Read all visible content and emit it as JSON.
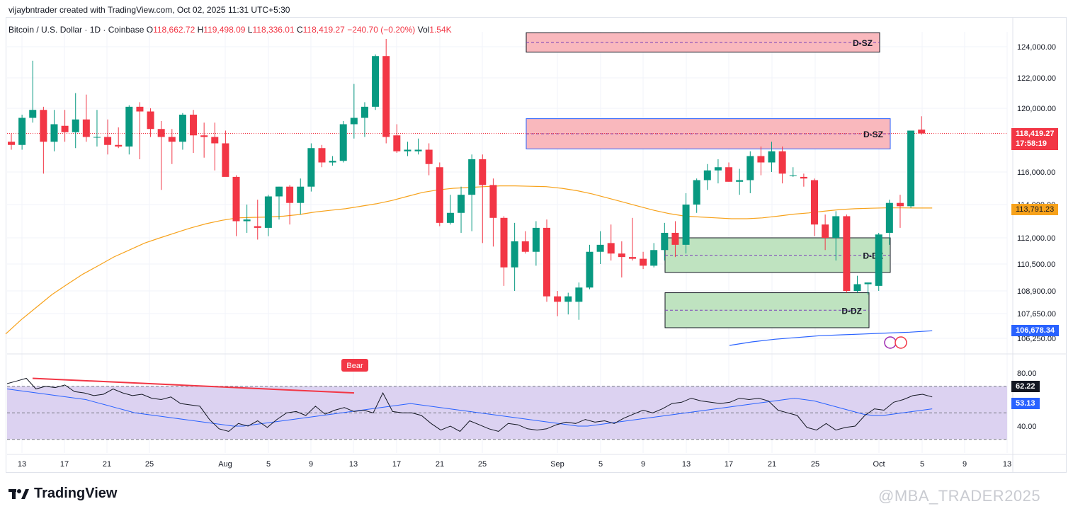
{
  "header": {
    "author_line": "vijaybntrader created with TradingView.com, Oct 02, 2025 11:31 UTC+5:30"
  },
  "symbol": {
    "title": "Bitcoin / U.S. Dollar · 1D · Coinbase",
    "o_label": "O",
    "o_value": "118,662.72",
    "h_label": "H",
    "h_value": "119,498.09",
    "l_label": "L",
    "l_value": "118,336.01",
    "c_label": "C",
    "c_value": "118,419.27",
    "change": "−240.70 (−0.20%)",
    "vol_label": "Vol",
    "vol_value": "1.54K"
  },
  "price_tags": {
    "last_price": "118,419.27",
    "countdown": "17:58:19",
    "ma_value": "113,791.23",
    "ma_long_value": "106,678.34",
    "rsi_value": "62.22",
    "rsi_ma_value": "53.13"
  },
  "colors": {
    "up": "#089981",
    "down": "#f23645",
    "ma": "#f7a21b",
    "ma_long": "#2962ff",
    "supply_zone": "#f9b8bd",
    "demand_zone": "#bfe3c0",
    "rsi_band": "#d8cdef"
  },
  "chart_data": [
    {
      "type": "candlestick",
      "title": "Bitcoin / U.S. Dollar · 1D · Coinbase",
      "y_ticks": [
        {
          "label": "124,000.00",
          "value": 124000
        },
        {
          "label": "122,000.00",
          "value": 122000
        },
        {
          "label": "120,000.00",
          "value": 120000
        },
        {
          "label": "116,000.00",
          "value": 116000
        },
        {
          "label": "114,000.00",
          "value": 114000
        },
        {
          "label": "112,000.00",
          "value": 112000
        },
        {
          "label": "110,500.00",
          "value": 110500
        },
        {
          "label": "108,900.00",
          "value": 108900
        },
        {
          "label": "107,650.00",
          "value": 107650
        },
        {
          "label": "106,250.00",
          "value": 106250
        }
      ],
      "x_ticks": [
        "13",
        "17",
        "21",
        "25",
        "Aug",
        "5",
        "9",
        "13",
        "17",
        "21",
        "25",
        "Sep",
        "5",
        "9",
        "13",
        "17",
        "21",
        "25",
        "Oct",
        "5",
        "9",
        "13"
      ],
      "zones": [
        {
          "label": "D-SZ",
          "kind": "supply",
          "top": 124900,
          "bottom": 123650
        },
        {
          "label": "D-SZ",
          "kind": "supply",
          "top": 119350,
          "bottom": 117450
        },
        {
          "label": "D-DZ",
          "kind": "demand",
          "top": 112000,
          "bottom": 110000
        },
        {
          "label": "D-DZ",
          "kind": "demand",
          "top": 108800,
          "bottom": 106850
        }
      ],
      "candles": [
        {
          "o": 117900,
          "h": 118400,
          "l": 117400,
          "c": 117700
        },
        {
          "o": 117700,
          "h": 119600,
          "l": 117400,
          "c": 119400
        },
        {
          "o": 119400,
          "h": 123100,
          "l": 119100,
          "c": 119900
        },
        {
          "o": 119900,
          "h": 120100,
          "l": 115900,
          "c": 117900
        },
        {
          "o": 117900,
          "h": 119900,
          "l": 117300,
          "c": 119000
        },
        {
          "o": 118900,
          "h": 119900,
          "l": 117900,
          "c": 118500
        },
        {
          "o": 118500,
          "h": 121000,
          "l": 117500,
          "c": 119300
        },
        {
          "o": 119300,
          "h": 120900,
          "l": 117900,
          "c": 118200
        },
        {
          "o": 118200,
          "h": 119900,
          "l": 117600,
          "c": 118200
        },
        {
          "o": 118200,
          "h": 119300,
          "l": 117100,
          "c": 117700
        },
        {
          "o": 117700,
          "h": 118800,
          "l": 117500,
          "c": 117600
        },
        {
          "o": 117600,
          "h": 120200,
          "l": 117100,
          "c": 120100
        },
        {
          "o": 120100,
          "h": 120400,
          "l": 116800,
          "c": 119800
        },
        {
          "o": 119800,
          "h": 120000,
          "l": 118200,
          "c": 118700
        },
        {
          "o": 118700,
          "h": 119200,
          "l": 114900,
          "c": 118200
        },
        {
          "o": 118200,
          "h": 118700,
          "l": 116500,
          "c": 117900
        },
        {
          "o": 117900,
          "h": 119700,
          "l": 117400,
          "c": 119600
        },
        {
          "o": 119600,
          "h": 119900,
          "l": 117200,
          "c": 118300
        },
        {
          "o": 118300,
          "h": 119100,
          "l": 116900,
          "c": 118200
        },
        {
          "o": 118200,
          "h": 119100,
          "l": 116100,
          "c": 117800
        },
        {
          "o": 117800,
          "h": 118600,
          "l": 115800,
          "c": 115700
        },
        {
          "o": 115700,
          "h": 115800,
          "l": 112100,
          "c": 113000
        },
        {
          "o": 113000,
          "h": 114000,
          "l": 112300,
          "c": 113100
        },
        {
          "o": 112700,
          "h": 114300,
          "l": 111900,
          "c": 112600
        },
        {
          "o": 112600,
          "h": 114600,
          "l": 112100,
          "c": 114500
        },
        {
          "o": 114500,
          "h": 115100,
          "l": 113100,
          "c": 115100
        },
        {
          "o": 115100,
          "h": 115200,
          "l": 112800,
          "c": 114100
        },
        {
          "o": 114100,
          "h": 115600,
          "l": 113400,
          "c": 115100
        },
        {
          "o": 115100,
          "h": 117800,
          "l": 114800,
          "c": 117500
        },
        {
          "o": 117500,
          "h": 117700,
          "l": 116300,
          "c": 116600
        },
        {
          "o": 116600,
          "h": 117000,
          "l": 116400,
          "c": 116700
        },
        {
          "o": 116700,
          "h": 119200,
          "l": 116600,
          "c": 119000
        },
        {
          "o": 119000,
          "h": 121600,
          "l": 118100,
          "c": 119400
        },
        {
          "o": 119400,
          "h": 120400,
          "l": 118200,
          "c": 120100
        },
        {
          "o": 120100,
          "h": 123500,
          "l": 119900,
          "c": 123400
        },
        {
          "o": 123400,
          "h": 124500,
          "l": 117800,
          "c": 118200
        },
        {
          "o": 118300,
          "h": 119000,
          "l": 117200,
          "c": 117300
        },
        {
          "o": 117300,
          "h": 117900,
          "l": 117000,
          "c": 117400
        },
        {
          "o": 117300,
          "h": 118100,
          "l": 117100,
          "c": 117400
        },
        {
          "o": 117400,
          "h": 117800,
          "l": 115800,
          "c": 116500
        },
        {
          "o": 116300,
          "h": 116600,
          "l": 112700,
          "c": 112900
        },
        {
          "o": 112900,
          "h": 114600,
          "l": 112800,
          "c": 113500
        },
        {
          "o": 113500,
          "h": 115100,
          "l": 112300,
          "c": 114600
        },
        {
          "o": 114600,
          "h": 117100,
          "l": 112400,
          "c": 116800
        },
        {
          "o": 116800,
          "h": 117100,
          "l": 111700,
          "c": 115200
        },
        {
          "o": 115200,
          "h": 115600,
          "l": 111500,
          "c": 113200
        },
        {
          "o": 113200,
          "h": 113300,
          "l": 109200,
          "c": 110300
        },
        {
          "o": 110300,
          "h": 112900,
          "l": 108900,
          "c": 111800
        },
        {
          "o": 111800,
          "h": 112400,
          "l": 111100,
          "c": 111200
        },
        {
          "o": 111200,
          "h": 113000,
          "l": 110400,
          "c": 112600
        },
        {
          "o": 112600,
          "h": 113100,
          "l": 108300,
          "c": 108600
        },
        {
          "o": 108600,
          "h": 108900,
          "l": 107500,
          "c": 108300
        },
        {
          "o": 108300,
          "h": 108800,
          "l": 107600,
          "c": 108600
        },
        {
          "o": 108300,
          "h": 109400,
          "l": 107300,
          "c": 109100
        },
        {
          "o": 109100,
          "h": 111600,
          "l": 109000,
          "c": 111200
        },
        {
          "o": 111200,
          "h": 112400,
          "l": 110500,
          "c": 111600
        },
        {
          "o": 111700,
          "h": 112800,
          "l": 110700,
          "c": 111100
        },
        {
          "o": 111100,
          "h": 111800,
          "l": 109700,
          "c": 110900
        },
        {
          "o": 110900,
          "h": 113200,
          "l": 110700,
          "c": 110800
        },
        {
          "o": 110800,
          "h": 111200,
          "l": 110200,
          "c": 110400
        },
        {
          "o": 110400,
          "h": 111700,
          "l": 110300,
          "c": 111300
        },
        {
          "o": 111300,
          "h": 112900,
          "l": 110700,
          "c": 112300
        },
        {
          "o": 112300,
          "h": 113000,
          "l": 110900,
          "c": 111600
        },
        {
          "o": 111600,
          "h": 114700,
          "l": 111100,
          "c": 114000
        },
        {
          "o": 114000,
          "h": 115600,
          "l": 113500,
          "c": 115500
        },
        {
          "o": 115500,
          "h": 116500,
          "l": 114900,
          "c": 116100
        },
        {
          "o": 116100,
          "h": 116800,
          "l": 115300,
          "c": 116300
        },
        {
          "o": 116300,
          "h": 116600,
          "l": 115400,
          "c": 115400
        },
        {
          "o": 115400,
          "h": 116200,
          "l": 114600,
          "c": 115500
        },
        {
          "o": 115500,
          "h": 117300,
          "l": 114700,
          "c": 117000
        },
        {
          "o": 117000,
          "h": 117600,
          "l": 115800,
          "c": 116600
        },
        {
          "o": 116600,
          "h": 117900,
          "l": 116000,
          "c": 117300
        },
        {
          "o": 117300,
          "h": 117600,
          "l": 115300,
          "c": 115900
        },
        {
          "o": 115800,
          "h": 116300,
          "l": 115700,
          "c": 115800
        },
        {
          "o": 115700,
          "h": 115900,
          "l": 115100,
          "c": 115600
        },
        {
          "o": 115500,
          "h": 115600,
          "l": 112100,
          "c": 112800
        },
        {
          "o": 112800,
          "h": 113400,
          "l": 111300,
          "c": 112000
        },
        {
          "o": 112000,
          "h": 113600,
          "l": 110700,
          "c": 113300
        },
        {
          "o": 113300,
          "h": 113400,
          "l": 108800,
          "c": 108900
        },
        {
          "o": 108900,
          "h": 109800,
          "l": 108800,
          "c": 109300
        },
        {
          "o": 109300,
          "h": 109400,
          "l": 108700,
          "c": 109400
        },
        {
          "o": 109200,
          "h": 112300,
          "l": 108900,
          "c": 112200
        },
        {
          "o": 112300,
          "h": 114300,
          "l": 111600,
          "c": 114100
        },
        {
          "o": 114100,
          "h": 114600,
          "l": 112600,
          "c": 113900
        },
        {
          "o": 113900,
          "h": 118600,
          "l": 113800,
          "c": 118600
        },
        {
          "o": 118660,
          "h": 119500,
          "l": 118340,
          "c": 118420
        }
      ],
      "ma": [
        106500,
        107300,
        108000,
        108700,
        109300,
        109900,
        110400,
        110900,
        111300,
        111700,
        112000,
        112300,
        112600,
        112850,
        113050,
        113200,
        113230,
        113250,
        113300,
        113400,
        113550,
        113650,
        113750,
        113900,
        114050,
        114250,
        114500,
        114750,
        114900,
        115000,
        115050,
        115100,
        115150,
        115150,
        115120,
        115100,
        115000,
        114850,
        114650,
        114400,
        114150,
        113900,
        113650,
        113450,
        113300,
        113250,
        113200,
        113150,
        113150,
        113200,
        113300,
        113420,
        113500,
        113600,
        113700,
        113750,
        113780,
        113800,
        113800,
        113790,
        113790
      ],
      "ma_long": [
        105850,
        106050,
        106200,
        106300,
        106400,
        106450,
        106500,
        106550,
        106600,
        106678
      ],
      "rsi_y_ticks": [
        {
          "label": "80.00",
          "value": 80
        },
        {
          "label": "40.00",
          "value": 40
        }
      ],
      "rsi": [
        72,
        74,
        76,
        68,
        70,
        69,
        71,
        66,
        65,
        63,
        64,
        68,
        65,
        63,
        64,
        61,
        60,
        62,
        57,
        56,
        55,
        45,
        38,
        36,
        42,
        40,
        44,
        39,
        45,
        50,
        51,
        48,
        55,
        49,
        52,
        54,
        51,
        52,
        50,
        65,
        51,
        50,
        50,
        48,
        42,
        37,
        40,
        36,
        44,
        41,
        38,
        36,
        42,
        41,
        38,
        37,
        38,
        41,
        43,
        42,
        45,
        43,
        44,
        42,
        46,
        49,
        52,
        50,
        53,
        57,
        58,
        61,
        59,
        58,
        57,
        58,
        61,
        60,
        61,
        59,
        52,
        50,
        48,
        39,
        37,
        42,
        37,
        39,
        40,
        48,
        53,
        52,
        58,
        60,
        63,
        64,
        62
      ],
      "rsi_ma": [
        68,
        67,
        66,
        65,
        64,
        63,
        62,
        61,
        60,
        58,
        56,
        54,
        52,
        50,
        49,
        48,
        47,
        46,
        45,
        44,
        43,
        42,
        41,
        40,
        40,
        41,
        42,
        43,
        44,
        45,
        46,
        47,
        48,
        49,
        50,
        51,
        52,
        53,
        54,
        55,
        56,
        57,
        56,
        55,
        54,
        53,
        52,
        51,
        50,
        49,
        48,
        47,
        46,
        45,
        44,
        43,
        42,
        41,
        40,
        40,
        41,
        42,
        43,
        44,
        45,
        46,
        47,
        48,
        49,
        50,
        51,
        52,
        53,
        54,
        55,
        56,
        57,
        58,
        59,
        60,
        61,
        60,
        59,
        57,
        55,
        53,
        51,
        49,
        48,
        48,
        49,
        50,
        51,
        52,
        53
      ],
      "divergence_label": "Bear"
    }
  ],
  "branding": {
    "logo_text": "TradingView",
    "watermark": "@MBA_TRADER2025"
  }
}
